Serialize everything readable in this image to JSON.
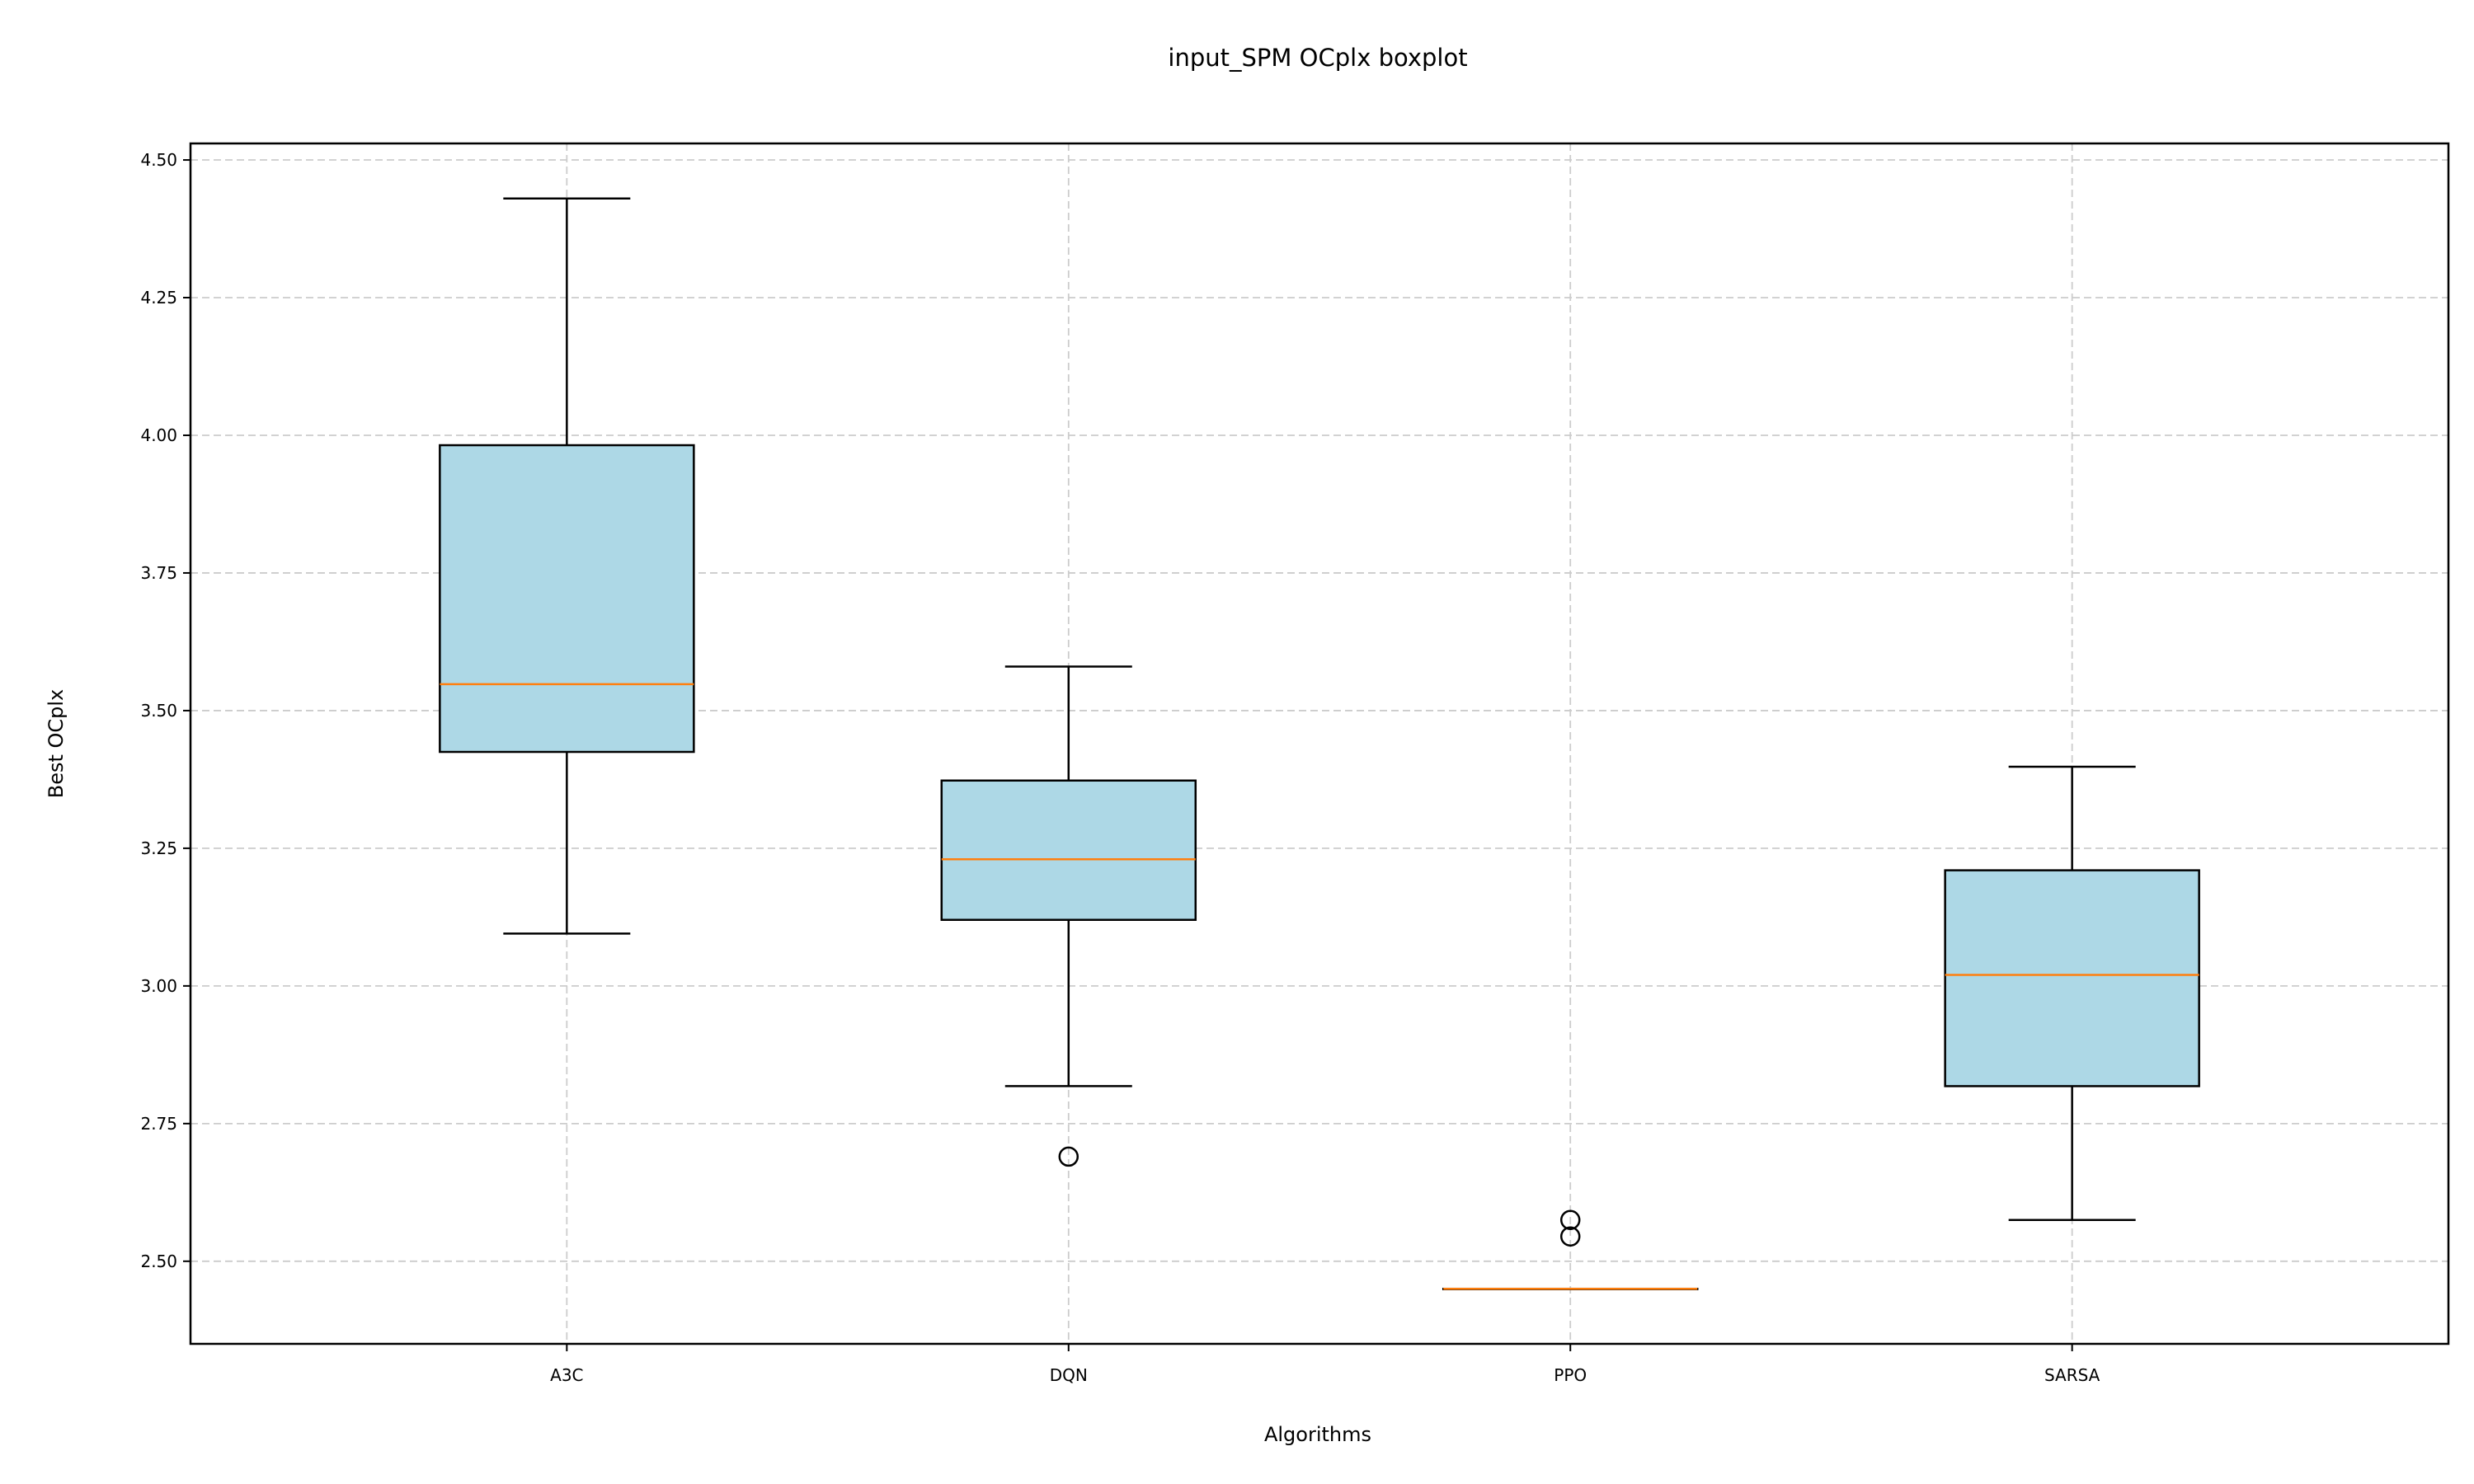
{
  "chart_data": {
    "type": "boxplot",
    "title": "input_SPM OCplx boxplot",
    "xlabel": "Algorithms",
    "ylabel": "Best OCplx",
    "ylim": [
      2.35,
      4.53
    ],
    "yticks": [
      2.5,
      2.75,
      3.0,
      3.25,
      3.5,
      3.75,
      4.0,
      4.25,
      4.5
    ],
    "ytick_labels": [
      "2.50",
      "2.75",
      "3.00",
      "3.25",
      "3.50",
      "3.75",
      "4.00",
      "4.25",
      "4.50"
    ],
    "grid": true,
    "categories": [
      "A3C",
      "DQN",
      "PPO",
      "SARSA"
    ],
    "boxes": [
      {
        "name": "A3C",
        "whisker_low": 3.095,
        "q1": 3.425,
        "median": 3.548,
        "q3": 3.982,
        "whisker_high": 4.43,
        "outliers": []
      },
      {
        "name": "DQN",
        "whisker_low": 2.818,
        "q1": 3.12,
        "median": 3.23,
        "q3": 3.373,
        "whisker_high": 3.58,
        "outliers": [
          2.69
        ]
      },
      {
        "name": "PPO",
        "whisker_low": 2.45,
        "q1": 2.45,
        "median": 2.45,
        "q3": 2.45,
        "whisker_high": 2.45,
        "outliers": [
          2.545,
          2.575
        ]
      },
      {
        "name": "SARSA",
        "whisker_low": 2.575,
        "q1": 2.818,
        "median": 3.02,
        "q3": 3.21,
        "whisker_high": 3.398,
        "outliers": []
      }
    ],
    "colors": {
      "box_fill": "#add8e6",
      "box_edge": "#000000",
      "median": "#ff7f0e",
      "grid": "#cccccc"
    }
  }
}
